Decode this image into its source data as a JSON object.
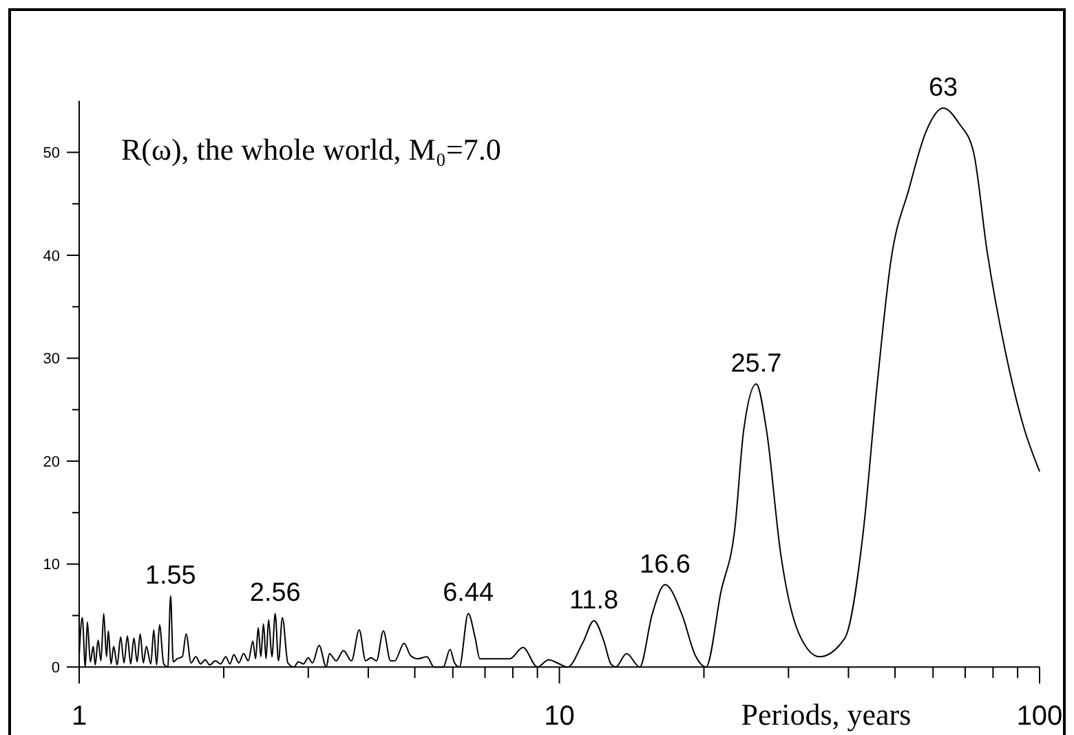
{
  "chart_data": {
    "type": "line",
    "title": "R(ω), the whole world, M₀=7.0",
    "xlabel": "Periods, years",
    "log": "x",
    "xlim": [
      1,
      100
    ],
    "xticks": [
      1,
      {
        "value": 2,
        "label": null
      },
      {
        "value": 3,
        "label": null
      },
      {
        "value": 4,
        "label": null
      },
      {
        "value": 5,
        "label": null
      },
      {
        "value": 6,
        "label": null
      },
      {
        "value": 7,
        "label": null
      },
      {
        "value": 8,
        "label": null
      },
      {
        "value": 9,
        "label": null
      },
      10,
      {
        "value": 20,
        "label": null
      },
      {
        "value": 30,
        "label": null
      },
      {
        "value": 40,
        "label": null
      },
      {
        "value": 50,
        "label": null
      },
      {
        "value": 60,
        "label": null
      },
      {
        "value": 70,
        "label": null
      },
      {
        "value": 80,
        "label": null
      },
      {
        "value": 90,
        "label": null
      },
      100
    ],
    "ylim": [
      0,
      55
    ],
    "yticks": [
      0,
      {
        "value": 5,
        "label": null
      },
      10,
      {
        "value": 15,
        "label": null
      },
      20,
      {
        "value": 25,
        "label": null
      },
      30,
      {
        "value": 35,
        "label": null
      },
      40,
      {
        "value": 45,
        "label": null
      },
      50
    ],
    "series": [
      {
        "color": "#000000",
        "x": [
          1.0,
          1.015,
          1.03,
          1.04,
          1.055,
          1.07,
          1.08,
          1.095,
          1.11,
          1.125,
          1.14,
          1.15,
          1.165,
          1.18,
          1.2,
          1.22,
          1.24,
          1.26,
          1.28,
          1.3,
          1.32,
          1.34,
          1.36,
          1.38,
          1.41,
          1.43,
          1.45,
          1.47,
          1.5,
          1.53,
          1.55,
          1.57,
          1.6,
          1.64,
          1.67,
          1.71,
          1.75,
          1.79,
          1.83,
          1.87,
          1.92,
          1.97,
          2.02,
          2.06,
          2.1,
          2.15,
          2.2,
          2.25,
          2.3,
          2.33,
          2.36,
          2.39,
          2.42,
          2.45,
          2.48,
          2.52,
          2.56,
          2.6,
          2.65,
          2.72,
          2.8,
          2.86,
          2.93,
          3.0,
          3.06,
          3.16,
          3.27,
          3.32,
          3.43,
          3.55,
          3.69,
          3.83,
          3.95,
          4.05,
          4.16,
          4.3,
          4.45,
          4.54,
          4.75,
          4.9,
          5.07,
          5.3,
          5.48,
          5.73,
          5.92,
          6.05,
          6.19,
          6.46,
          6.68,
          6.83,
          7.3,
          7.88,
          8.4,
          9.0,
          9.5,
          10.0,
          10.4,
          11.2,
          11.8,
          12.4,
          12.8,
          13.1,
          13.8,
          14.7,
          15.6,
          16.6,
          18.0,
          19.2,
          20.2,
          21.7,
          23.2,
          24.2,
          25.7,
          27.0,
          28.9,
          31.5,
          34.8,
          39.3,
          42.9,
          45.8,
          49,
          53.5,
          58,
          63,
          68,
          72.8,
          77.8,
          85,
          92.7,
          100
        ],
        "values": [
          1.2,
          4.8,
          0,
          4.4,
          0.5,
          2.0,
          0.2,
          2.6,
          0.6,
          5.2,
          1.0,
          3.5,
          0.3,
          2.0,
          0.2,
          2.9,
          0.4,
          3.0,
          0.3,
          2.8,
          0.5,
          3.2,
          0.4,
          2.0,
          0.3,
          3.6,
          0.2,
          4.1,
          0.3,
          0,
          6.9,
          0.5,
          0.8,
          1.0,
          3.2,
          0.4,
          1.0,
          0.3,
          0.7,
          0.2,
          0.6,
          0.3,
          1.0,
          0.3,
          1.2,
          0.4,
          1.3,
          0.6,
          2.5,
          0.8,
          3.8,
          1.0,
          4.2,
          0.8,
          4.6,
          1.0,
          5.2,
          0.6,
          4.8,
          0.4,
          0,
          0.5,
          0.3,
          0.9,
          0.4,
          2.1,
          0,
          1.3,
          0.6,
          1.6,
          0.6,
          3.6,
          0.6,
          0.9,
          0.6,
          3.5,
          0.6,
          0.6,
          2.3,
          1.1,
          0.8,
          1.0,
          0,
          0,
          1.7,
          0.4,
          0,
          5.2,
          2.8,
          0.8,
          0.8,
          0.8,
          1.9,
          0,
          0.7,
          0.3,
          0,
          2.4,
          4.5,
          2.4,
          0.3,
          0,
          1.3,
          0,
          5.1,
          8.0,
          5.1,
          1.1,
          0,
          7.3,
          13.5,
          23,
          27.5,
          23,
          11,
          3.3,
          1.0,
          2.8,
          13,
          27,
          39.4,
          46.5,
          52,
          54.3,
          52.8,
          50.1,
          40.3,
          30.5,
          23.3,
          19.0
        ]
      }
    ],
    "annotations": [
      {
        "text": "1.55",
        "x": 1.55,
        "y": 6.9
      },
      {
        "text": "2.56",
        "x": 2.56,
        "y": 5.2
      },
      {
        "text": "6.44",
        "x": 6.46,
        "y": 5.2
      },
      {
        "text": "11.8",
        "x": 11.8,
        "y": 4.5
      },
      {
        "text": "16.6",
        "x": 16.6,
        "y": 8.0
      },
      {
        "text": "25.7",
        "x": 25.7,
        "y": 27.5
      },
      {
        "text": "63",
        "x": 63,
        "y": 54.3
      }
    ]
  }
}
